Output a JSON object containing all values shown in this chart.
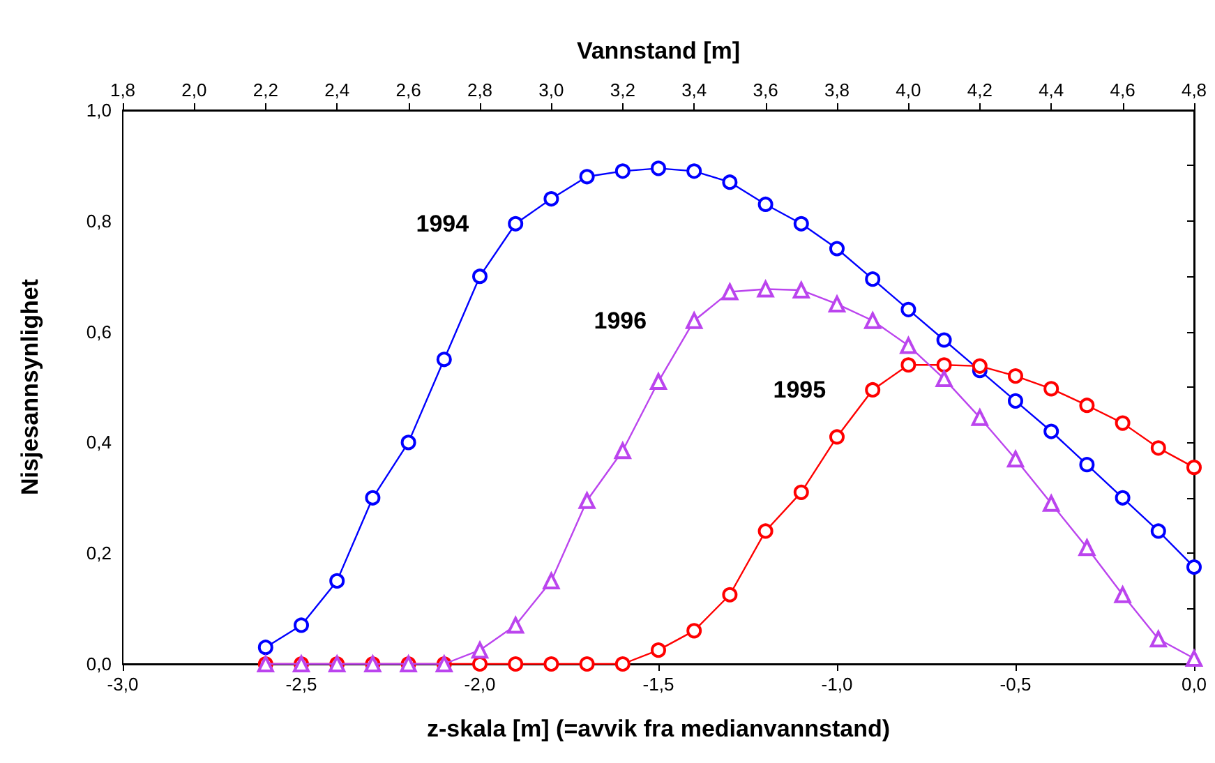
{
  "chart_data": {
    "type": "line",
    "xlabel": "z-skala [m] (=avvik fra medianvannstand)",
    "ylabel": "Nisjesannsynlighet",
    "x2label": "Vannstand [m]",
    "x": [
      -2.6,
      -2.5,
      -2.4,
      -2.3,
      -2.2,
      -2.1,
      -2.0,
      -1.9,
      -1.8,
      -1.7,
      -1.6,
      -1.5,
      -1.4,
      -1.3,
      -1.2,
      -1.1,
      -1.0,
      -0.9,
      -0.8,
      -0.7,
      -0.6,
      -0.5,
      -0.4,
      -0.3,
      -0.2,
      -0.1,
      0.0
    ],
    "series": [
      {
        "name": "1994",
        "color": "#0000ff",
        "marker": "circle",
        "values": [
          0.03,
          0.07,
          0.15,
          0.3,
          0.4,
          0.55,
          0.7,
          0.795,
          0.84,
          0.88,
          0.89,
          0.895,
          0.89,
          0.87,
          0.83,
          0.795,
          0.75,
          0.695,
          0.64,
          0.585,
          0.53,
          0.475,
          0.42,
          0.36,
          0.3,
          0.24,
          0.175
        ]
      },
      {
        "name": "1995",
        "color": "#ff0000",
        "marker": "circle",
        "values": [
          0,
          0,
          0,
          0,
          0,
          0,
          0,
          0,
          0,
          0,
          0,
          0.025,
          0.06,
          0.125,
          0.24,
          0.31,
          0.41,
          0.495,
          0.54,
          0.54,
          0.538,
          0.52,
          0.497,
          0.467,
          0.435,
          0.39,
          0.355
        ]
      },
      {
        "name": "1996",
        "color": "#bb44ee",
        "marker": "triangle",
        "values": [
          0,
          0,
          0,
          0,
          0,
          0,
          0.025,
          0.07,
          0.15,
          0.295,
          0.385,
          0.51,
          0.62,
          0.672,
          0.677,
          0.675,
          0.65,
          0.62,
          0.575,
          0.515,
          0.445,
          0.37,
          0.29,
          0.21,
          0.125,
          0.045,
          0.01
        ]
      }
    ],
    "xlim": [
      -3.0,
      0.0
    ],
    "xticks": [
      {
        "value": -3.0,
        "label": "-3,0"
      },
      {
        "value": -2.5,
        "label": "-2,5"
      },
      {
        "value": -2.0,
        "label": "-2,0"
      },
      {
        "value": -1.5,
        "label": "-1,5"
      },
      {
        "value": -1.0,
        "label": "-1,0"
      },
      {
        "value": -0.5,
        "label": "-0,5"
      },
      {
        "value": 0.0,
        "label": "0,0"
      }
    ],
    "x2lim": [
      1.8,
      4.8
    ],
    "x2ticks": [
      {
        "value": 1.8,
        "label": "1,8"
      },
      {
        "value": 2.0,
        "label": "2,0"
      },
      {
        "value": 2.2,
        "label": "2,2"
      },
      {
        "value": 2.4,
        "label": "2,4"
      },
      {
        "value": 2.6,
        "label": "2,6"
      },
      {
        "value": 2.8,
        "label": "2,8"
      },
      {
        "value": 3.0,
        "label": "3,0"
      },
      {
        "value": 3.2,
        "label": "3,2"
      },
      {
        "value": 3.4,
        "label": "3,4"
      },
      {
        "value": 3.6,
        "label": "3,6"
      },
      {
        "value": 3.8,
        "label": "3,8"
      },
      {
        "value": 4.0,
        "label": "4,0"
      },
      {
        "value": 4.2,
        "label": "4,2"
      },
      {
        "value": 4.4,
        "label": "4,4"
      },
      {
        "value": 4.6,
        "label": "4,6"
      },
      {
        "value": 4.8,
        "label": "4,8"
      }
    ],
    "ylim": [
      0,
      1.0
    ],
    "yticks": [
      {
        "value": 0,
        "label": "0,0"
      },
      {
        "value": 0.1,
        "label": null
      },
      {
        "value": 0.2,
        "label": "0,2"
      },
      {
        "value": 0.3,
        "label": null
      },
      {
        "value": 0.4,
        "label": "0,4"
      },
      {
        "value": 0.5,
        "label": null
      },
      {
        "value": 0.6,
        "label": "0,6"
      },
      {
        "value": 0.7,
        "label": null
      },
      {
        "value": 0.8,
        "label": "0,8"
      },
      {
        "value": 0.9,
        "label": null
      },
      {
        "value": 1.0,
        "label": "1,0"
      }
    ],
    "grid": false,
    "legend": false,
    "line_style": "solid"
  }
}
